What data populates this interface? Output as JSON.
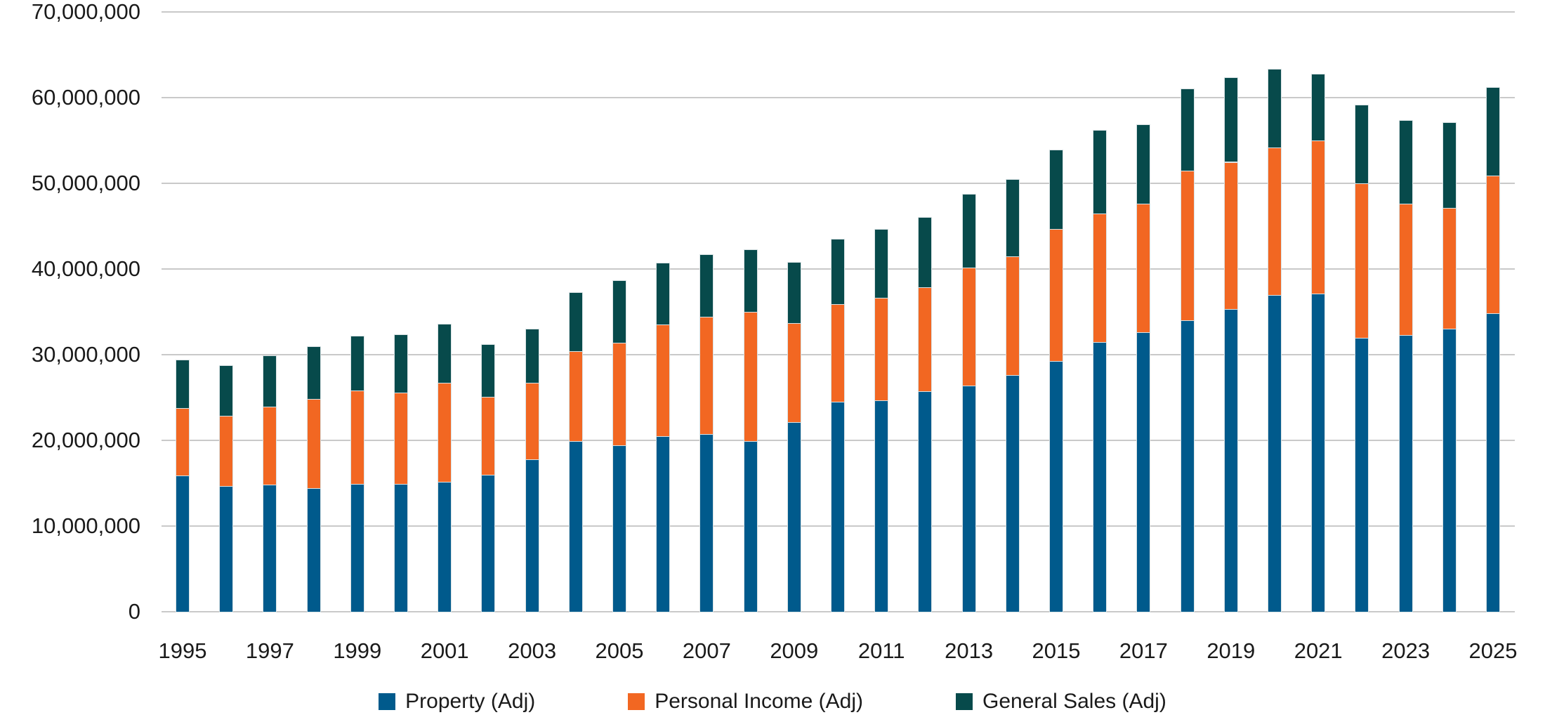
{
  "chart_data": {
    "type": "bar",
    "stacked": true,
    "title": "",
    "xlabel": "",
    "ylabel": "",
    "grid": "horizontal",
    "legend_position": "bottom",
    "ylim": [
      0,
      70000000
    ],
    "ytick_step": 10000000,
    "ytick_labels": [
      "0",
      "10,000,000",
      "20,000,000",
      "30,000,000",
      "40,000,000",
      "50,000,000",
      "60,000,000",
      "70,000,000"
    ],
    "xtick_labels": [
      "1995",
      "1997",
      "1999",
      "2001",
      "2003",
      "2005",
      "2007",
      "2009",
      "2011",
      "2013",
      "2015",
      "2017",
      "2019",
      "2021",
      "2023",
      "2025"
    ],
    "categories": [
      1995,
      1996,
      1997,
      1998,
      1999,
      2000,
      2001,
      2002,
      2003,
      2004,
      2005,
      2006,
      2007,
      2008,
      2009,
      2010,
      2011,
      2012,
      2013,
      2014,
      2015,
      2016,
      2017,
      2018,
      2019,
      2020,
      2021,
      2022,
      2023,
      2024,
      2025
    ],
    "series": [
      {
        "name": "Property (Adj)",
        "color": "#005a8c",
        "values": [
          15900000,
          14700000,
          14800000,
          14400000,
          14900000,
          14900000,
          15200000,
          16000000,
          17800000,
          19900000,
          19400000,
          20500000,
          20700000,
          19900000,
          22100000,
          24500000,
          24700000,
          25700000,
          26400000,
          27600000,
          29300000,
          31500000,
          32600000,
          34000000,
          35300000,
          37000000,
          37100000,
          32000000,
          32300000,
          33000000,
          34800000
        ]
      },
      {
        "name": "Personal Income (Adj)",
        "color": "#f26722",
        "values": [
          7900000,
          8200000,
          9100000,
          10400000,
          10900000,
          10700000,
          11500000,
          9100000,
          8900000,
          10500000,
          12000000,
          13000000,
          13700000,
          15100000,
          11600000,
          11400000,
          11900000,
          12200000,
          13800000,
          13900000,
          15400000,
          15000000,
          15000000,
          17500000,
          17200000,
          17200000,
          17900000,
          18000000,
          15300000,
          14100000,
          16100000
        ]
      },
      {
        "name": "General Sales (Adj)",
        "color": "#074a4b",
        "values": [
          5600000,
          5900000,
          6000000,
          6200000,
          6400000,
          6800000,
          6900000,
          6100000,
          6300000,
          6900000,
          7300000,
          7200000,
          7300000,
          7300000,
          7100000,
          7600000,
          8100000,
          8200000,
          8600000,
          9000000,
          9200000,
          9700000,
          9300000,
          9600000,
          9900000,
          9200000,
          7800000,
          9200000,
          9800000,
          10000000,
          10300000
        ]
      }
    ]
  }
}
